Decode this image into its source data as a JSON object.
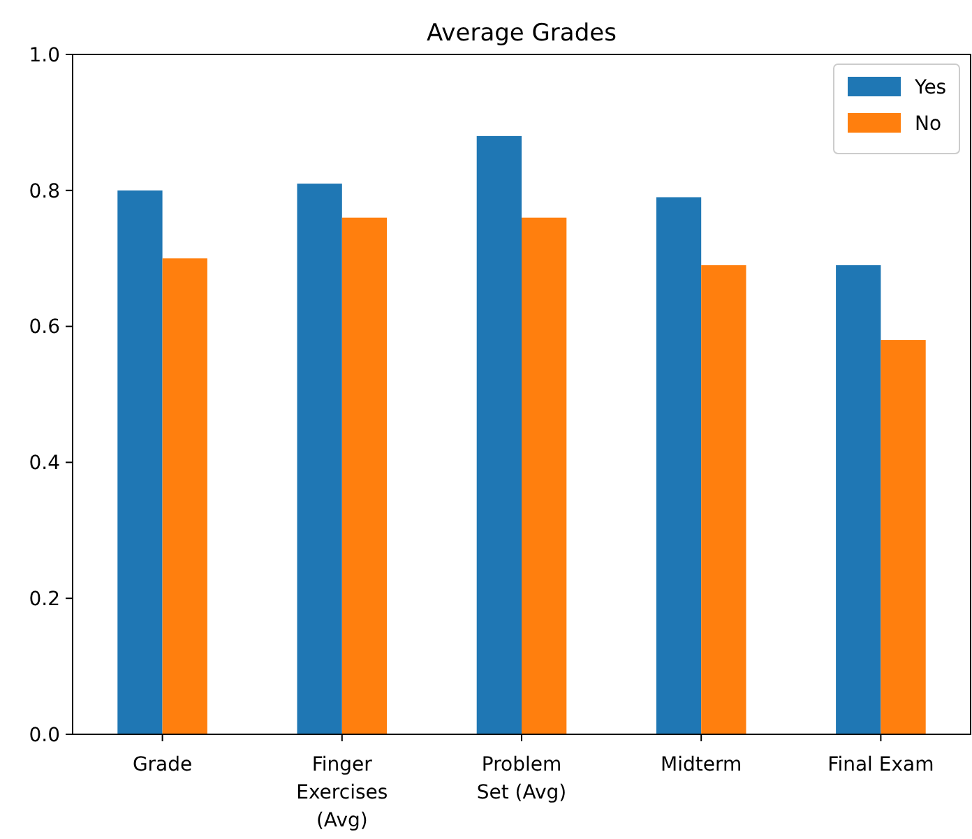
{
  "chart_data": {
    "type": "bar",
    "title": "Average Grades",
    "categories": [
      "Grade",
      "Finger\nExercises\n(Avg)",
      "Problem\nSet (Avg)",
      "Midterm",
      "Final Exam"
    ],
    "series": [
      {
        "name": "Yes",
        "color": "#1f77b4",
        "values": [
          0.8,
          0.81,
          0.88,
          0.79,
          0.69
        ]
      },
      {
        "name": "No",
        "color": "#ff7f0e",
        "values": [
          0.7,
          0.76,
          0.76,
          0.69,
          0.58
        ]
      }
    ],
    "ylim": [
      0,
      1
    ],
    "yticks": [
      {
        "value": 0,
        "label": "0.0"
      },
      {
        "value": 0.2,
        "label": "0.2"
      },
      {
        "value": 0.4,
        "label": "0.4"
      },
      {
        "value": 0.6,
        "label": "0.6"
      },
      {
        "value": 0.8,
        "label": "0.8"
      },
      {
        "value": 1,
        "label": "1.0"
      }
    ],
    "grid": false,
    "legend": "top right"
  }
}
